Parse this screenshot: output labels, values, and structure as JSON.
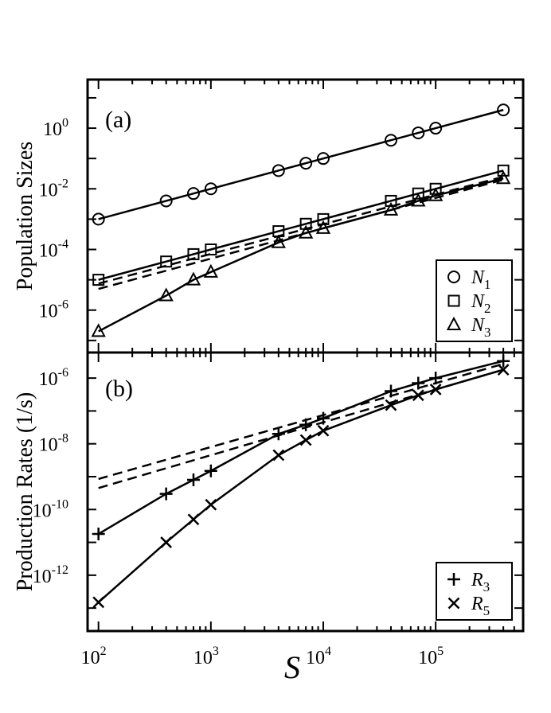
{
  "figure": {
    "xlabel": "S",
    "x_ticks": [
      {
        "value": 100,
        "label": "10",
        "exp": "2"
      },
      {
        "value": 1000,
        "label": "10",
        "exp": "3"
      },
      {
        "value": 10000,
        "label": "10",
        "exp": "4"
      },
      {
        "value": 100000,
        "label": "10",
        "exp": "5"
      }
    ]
  },
  "chart_data": [
    {
      "type": "line",
      "panel_label": "(a)",
      "ylabel": "Population Sizes",
      "xlabel": "S",
      "x_scale": "log",
      "y_scale": "log",
      "xlim": [
        80,
        600000
      ],
      "ylim": [
        4e-08,
        40
      ],
      "y_ticks": [
        {
          "value": 1,
          "label": "10",
          "exp": "0"
        },
        {
          "value": 0.01,
          "label": "10",
          "exp": "-2"
        },
        {
          "value": 0.0001,
          "label": "10",
          "exp": "-4"
        },
        {
          "value": 1e-06,
          "label": "10",
          "exp": "-6"
        }
      ],
      "legend": {
        "position": "bottom-right"
      },
      "series": [
        {
          "name": "N",
          "sub": "1",
          "marker": "circle",
          "x": [
            100,
            400,
            700,
            1000,
            4000,
            7000,
            10000,
            40000,
            70000,
            100000,
            400000
          ],
          "y": [
            0.001,
            0.004,
            0.007,
            0.01,
            0.04,
            0.07,
            0.1,
            0.4,
            0.7,
            1.0,
            4.0
          ]
        },
        {
          "name": "N",
          "sub": "2",
          "marker": "square",
          "x": [
            100,
            400,
            700,
            1000,
            4000,
            7000,
            10000,
            40000,
            70000,
            100000,
            400000
          ],
          "y": [
            1e-05,
            4e-05,
            7e-05,
            0.0001,
            0.0004,
            0.0007,
            0.001,
            0.004,
            0.007,
            0.01,
            0.04
          ]
        },
        {
          "name": "N",
          "sub": "3",
          "marker": "triangle",
          "x": [
            100,
            400,
            700,
            1000,
            4000,
            7000,
            10000,
            40000,
            70000,
            100000,
            400000
          ],
          "y": [
            2e-07,
            3e-06,
            1e-05,
            1.8e-05,
            0.00017,
            0.00035,
            0.0005,
            0.002,
            0.004,
            0.006,
            0.022
          ]
        }
      ],
      "dashed_lines": [
        {
          "x": [
            100,
            400000
          ],
          "y": [
            5e-06,
            0.02
          ]
        },
        {
          "x": [
            100,
            400000
          ],
          "y": [
            7.5e-06,
            0.025
          ]
        }
      ]
    },
    {
      "type": "line",
      "panel_label": "(b)",
      "ylabel": "Production Rates (1/s)",
      "xlabel": "S",
      "x_scale": "log",
      "y_scale": "log",
      "xlim": [
        80,
        600000
      ],
      "ylim": [
        2e-14,
        6e-06
      ],
      "y_ticks": [
        {
          "value": 1e-06,
          "label": "10",
          "exp": "-6"
        },
        {
          "value": 1e-08,
          "label": "10",
          "exp": "-8"
        },
        {
          "value": 1e-10,
          "label": "10",
          "exp": "-10"
        },
        {
          "value": 1e-12,
          "label": "10",
          "exp": "-12"
        }
      ],
      "legend": {
        "position": "bottom-right"
      },
      "series": [
        {
          "name": "R",
          "sub": "3",
          "marker": "plus",
          "x": [
            100,
            400,
            700,
            1000,
            4000,
            7000,
            10000,
            40000,
            70000,
            100000,
            400000
          ],
          "y": [
            1.8e-11,
            3e-10,
            8e-10,
            1.5e-09,
            2e-08,
            3.8e-08,
            6e-08,
            4e-07,
            7e-07,
            1e-06,
            3.3e-06
          ]
        },
        {
          "name": "R",
          "sub": "5",
          "marker": "cross",
          "x": [
            100,
            400,
            700,
            1000,
            4000,
            7000,
            10000,
            40000,
            70000,
            100000,
            400000
          ],
          "y": [
            1.5e-13,
            1e-11,
            5e-11,
            1.4e-10,
            4.5e-09,
            1.3e-08,
            2.5e-08,
            1.5e-07,
            3e-07,
            4.5e-07,
            1.8e-06
          ]
        }
      ],
      "dashed_lines": [
        {
          "x": [
            100,
            400000
          ],
          "y": [
            4.5e-10,
            1.8e-06
          ]
        },
        {
          "x": [
            100,
            400000
          ],
          "y": [
            8.5e-10,
            2.7e-06
          ]
        }
      ]
    }
  ],
  "colors": {
    "ink": "#000000",
    "background": "#ffffff"
  }
}
